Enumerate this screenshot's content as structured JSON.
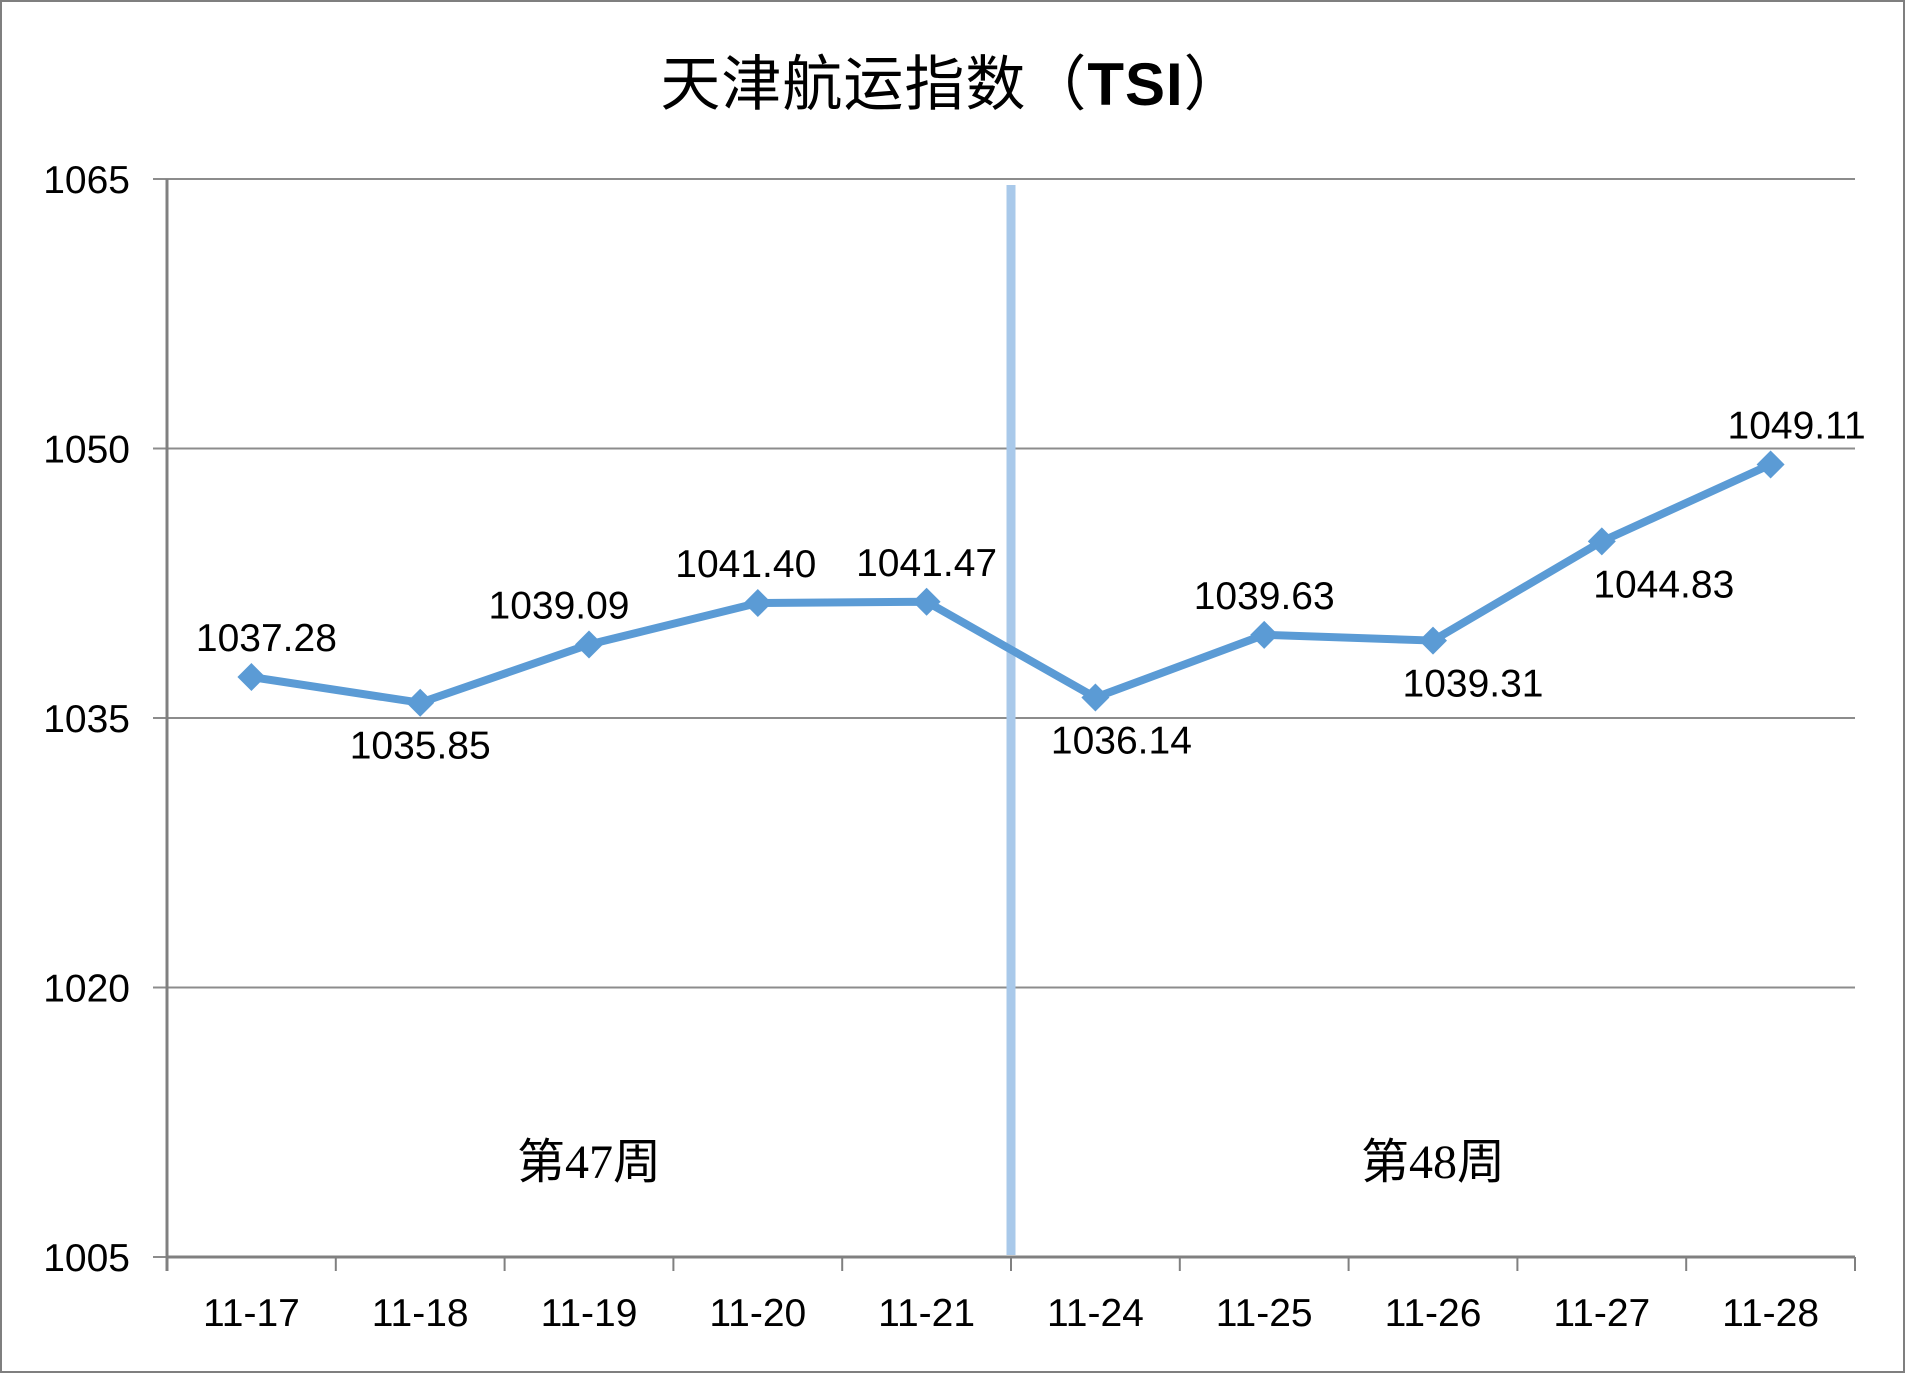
{
  "title": {
    "prefix": "天津航运指数（",
    "highlight": "TSI",
    "suffix": "）"
  },
  "chart_data": {
    "type": "line",
    "title": "天津航运指数（TSI）",
    "categories": [
      "11-17",
      "11-18",
      "11-19",
      "11-20",
      "11-21",
      "11-24",
      "11-25",
      "11-26",
      "11-27",
      "11-28"
    ],
    "series": [
      {
        "name": "TSI",
        "values": [
          1037.28,
          1035.85,
          1039.09,
          1041.4,
          1041.47,
          1036.14,
          1039.63,
          1039.31,
          1044.83,
          1049.11
        ]
      }
    ],
    "point_labels": [
      "1037.28",
      "1035.85",
      "1039.09",
      "1041.40",
      "1041.47",
      "1036.14",
      "1039.63",
      "1039.31",
      "1044.83",
      "1049.11"
    ],
    "label_layout": [
      {
        "position": "above",
        "dx": 15
      },
      {
        "position": "below",
        "dx": 0
      },
      {
        "position": "above",
        "dx": -30
      },
      {
        "position": "above",
        "dx": -12
      },
      {
        "position": "above",
        "dx": 0
      },
      {
        "position": "below",
        "dx": 26
      },
      {
        "position": "above",
        "dx": 0
      },
      {
        "position": "below",
        "dx": 40
      },
      {
        "position": "below",
        "dx": 62
      },
      {
        "position": "above",
        "dx": 26
      }
    ],
    "xlabel": "",
    "ylabel": "",
    "ylim": [
      1005,
      1065
    ],
    "y_ticks": [
      1005,
      1020,
      1035,
      1050,
      1065
    ],
    "grid": "horizontal",
    "legend": "none",
    "annotations": [
      {
        "text": "第47周",
        "span": [
          0,
          4
        ]
      },
      {
        "text": "第48周",
        "span": [
          5,
          9
        ]
      }
    ],
    "divider": {
      "after_index": 4,
      "color": "#A9C9EA"
    },
    "colors": {
      "line": "#5B9BD5",
      "marker": "#5B9BD5",
      "grid": "#8C8C8C",
      "axis": "#808080",
      "text": "#000000"
    }
  }
}
